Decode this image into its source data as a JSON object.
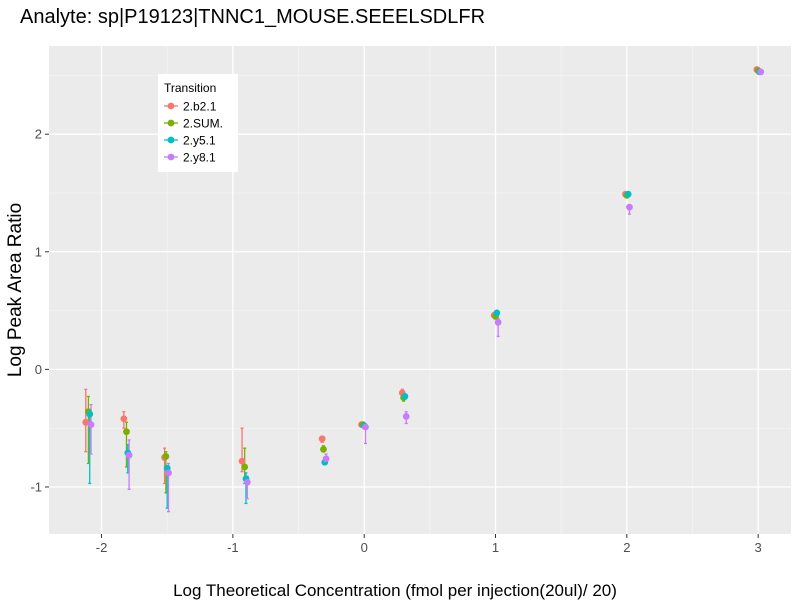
{
  "chart_data": {
    "type": "scatter",
    "title": "Analyte: sp|P19123|TNNC1_MOUSE.SEEELSDLFR",
    "xlabel": "Log Theoretical Concentration (fmol per injection(20ul)/ 20)",
    "ylabel": "Log Peak Area Ratio",
    "xlim": [
      -2.4,
      3.25
    ],
    "ylim": [
      -1.4,
      2.75
    ],
    "x_ticks": [
      -2,
      -1,
      0,
      1,
      2,
      3
    ],
    "x_tick_labels": [
      "-2",
      "-1",
      "0",
      "1",
      "2",
      "3"
    ],
    "y_ticks": [
      -1,
      0,
      1,
      2
    ],
    "y_tick_labels": [
      "-1",
      "0",
      "1",
      "2"
    ],
    "grid": true,
    "legend": {
      "title": "Transition",
      "placement": "top-left"
    },
    "series": [
      {
        "name": "2.b2.1",
        "color": "#F8766D",
        "points": [
          {
            "x": -2.12,
            "y": -0.45,
            "lo": -0.7,
            "hi": -0.17
          },
          {
            "x": -1.83,
            "y": -0.42,
            "lo": -0.5,
            "hi": -0.36
          },
          {
            "x": -1.52,
            "y": -0.75,
            "lo": -0.97,
            "hi": -0.67
          },
          {
            "x": -0.93,
            "y": -0.78,
            "lo": -0.87,
            "hi": -0.5
          },
          {
            "x": -0.32,
            "y": -0.59,
            "lo": -0.62,
            "hi": -0.57
          },
          {
            "x": -0.02,
            "y": -0.47,
            "lo": -0.48,
            "hi": -0.46
          },
          {
            "x": 0.29,
            "y": -0.2,
            "lo": -0.25,
            "hi": -0.17
          },
          {
            "x": 0.99,
            "y": 0.46,
            "lo": 0.45,
            "hi": 0.47
          },
          {
            "x": 1.99,
            "y": 1.49,
            "lo": 1.48,
            "hi": 1.5
          },
          {
            "x": 2.99,
            "y": 2.55,
            "lo": 2.54,
            "hi": 2.56
          }
        ]
      },
      {
        "name": "2.SUM.",
        "color": "#7CAE00",
        "points": [
          {
            "x": -2.1,
            "y": -0.36,
            "lo": -0.8,
            "hi": -0.23
          },
          {
            "x": -1.81,
            "y": -0.53,
            "lo": -0.83,
            "hi": -0.45
          },
          {
            "x": -1.51,
            "y": -0.74,
            "lo": -1.05,
            "hi": -0.7
          },
          {
            "x": -0.91,
            "y": -0.83,
            "lo": -0.97,
            "hi": -0.67
          },
          {
            "x": -0.31,
            "y": -0.68,
            "lo": -0.7,
            "hi": -0.65
          },
          {
            "x": -0.01,
            "y": -0.47,
            "lo": -0.49,
            "hi": -0.45
          },
          {
            "x": 0.3,
            "y": -0.24,
            "lo": -0.27,
            "hi": -0.22
          },
          {
            "x": 1.0,
            "y": 0.45,
            "lo": 0.44,
            "hi": 0.46
          },
          {
            "x": 2.0,
            "y": 1.48,
            "lo": 1.47,
            "hi": 1.49
          },
          {
            "x": 3.0,
            "y": 2.54,
            "lo": 2.53,
            "hi": 2.55
          }
        ]
      },
      {
        "name": "2.y5.1",
        "color": "#00BFC4",
        "points": [
          {
            "x": -2.09,
            "y": -0.38,
            "lo": -0.97,
            "hi": -0.34
          },
          {
            "x": -1.8,
            "y": -0.71,
            "lo": -0.88,
            "hi": -0.64
          },
          {
            "x": -1.5,
            "y": -0.84,
            "lo": -1.18,
            "hi": -0.82
          },
          {
            "x": -0.9,
            "y": -0.93,
            "lo": -1.14,
            "hi": -0.88
          },
          {
            "x": -0.3,
            "y": -0.79,
            "lo": -0.8,
            "hi": -0.76
          },
          {
            "x": 0.0,
            "y": -0.48,
            "lo": -0.5,
            "hi": -0.46
          },
          {
            "x": 0.31,
            "y": -0.23,
            "lo": -0.25,
            "hi": -0.21
          },
          {
            "x": 1.01,
            "y": 0.48,
            "lo": 0.47,
            "hi": 0.49
          },
          {
            "x": 2.01,
            "y": 1.49,
            "lo": 1.48,
            "hi": 1.5
          },
          {
            "x": 3.01,
            "y": 2.53,
            "lo": 2.52,
            "hi": 2.54
          }
        ]
      },
      {
        "name": "2.y8.1",
        "color": "#C77CFF",
        "points": [
          {
            "x": -2.08,
            "y": -0.47,
            "lo": -0.72,
            "hi": -0.3
          },
          {
            "x": -1.79,
            "y": -0.73,
            "lo": -1.02,
            "hi": -0.6
          },
          {
            "x": -1.49,
            "y": -0.88,
            "lo": -1.21,
            "hi": -0.8
          },
          {
            "x": -0.89,
            "y": -0.96,
            "lo": -1.1,
            "hi": -0.91
          },
          {
            "x": -0.29,
            "y": -0.76,
            "lo": -0.79,
            "hi": -0.72
          },
          {
            "x": 0.01,
            "y": -0.49,
            "lo": -0.63,
            "hi": -0.47
          },
          {
            "x": 0.32,
            "y": -0.4,
            "lo": -0.46,
            "hi": -0.36
          },
          {
            "x": 1.02,
            "y": 0.4,
            "lo": 0.28,
            "hi": 0.43
          },
          {
            "x": 2.02,
            "y": 1.38,
            "lo": 1.32,
            "hi": 1.4
          },
          {
            "x": 3.02,
            "y": 2.53,
            "lo": 2.52,
            "hi": 2.54
          }
        ]
      }
    ]
  }
}
